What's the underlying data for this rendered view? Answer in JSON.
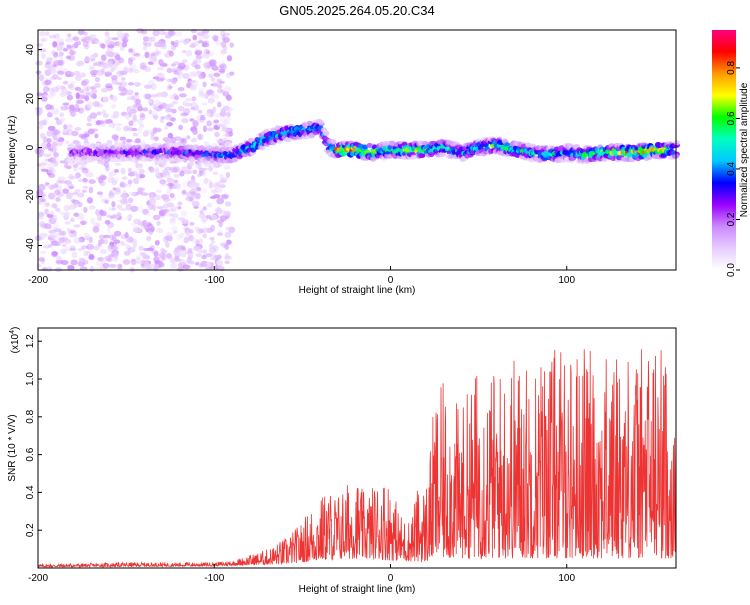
{
  "title": "GN05.2025.264.05.20.C34",
  "chart_data": [
    {
      "type": "heatmap",
      "title": "GN05.2025.264.05.20.C34",
      "xlabel": "Height of straight line (km)",
      "ylabel": "Frequency (Hz)",
      "xlim": [
        -200,
        162
      ],
      "ylim": [
        -50,
        48
      ],
      "x_ticks": [
        -200,
        -100,
        0,
        100
      ],
      "y_ticks": [
        -40,
        -20,
        0,
        20,
        40
      ],
      "grid": false,
      "colorbar": {
        "label": "Normalized spectral amplitude",
        "range": [
          0,
          0.95
        ],
        "ticks": [
          0.0,
          0.2,
          0.4,
          0.6,
          0.8
        ],
        "colormap": [
          "#ffffff",
          "#e6ccff",
          "#cc88ff",
          "#9900ff",
          "#0000ff",
          "#00c8ff",
          "#00ffc0",
          "#00ff00",
          "#ffff00",
          "#ff9900",
          "#ff0000",
          "#ff0080"
        ]
      },
      "ridge": {
        "x": [
          -180,
          -150,
          -120,
          -100,
          -90,
          -80,
          -70,
          -60,
          -50,
          -40,
          -35,
          -30,
          -20,
          -10,
          0,
          10,
          20,
          30,
          40,
          50,
          60,
          70,
          80,
          90,
          100,
          110,
          120,
          130,
          140,
          150,
          160
        ],
        "y": [
          -2,
          -2,
          -2,
          -3,
          -3,
          0,
          4,
          6,
          7,
          8,
          0,
          -1,
          -1,
          -2,
          -1,
          -1,
          -1,
          0,
          -2,
          0,
          1,
          -1,
          -2,
          -3,
          -2,
          -3,
          -2,
          -2,
          -2,
          -1,
          -1
        ],
        "peak_amplitude": [
          0.3,
          0.35,
          0.4,
          0.45,
          0.5,
          0.55,
          0.6,
          0.6,
          0.55,
          0.5,
          0.5,
          0.85,
          0.9,
          0.75,
          0.6,
          0.8,
          0.7,
          0.6,
          0.55,
          0.6,
          0.65,
          0.6,
          0.55,
          0.6,
          0.55,
          0.6,
          0.7,
          0.8,
          0.9,
          0.9,
          0.6
        ]
      },
      "noise_region": {
        "x_from": -200,
        "x_to": -90,
        "amplitude": 0.15
      }
    },
    {
      "type": "line",
      "xlabel": "Height of straight line (km)",
      "ylabel": "SNR (10 * V/V)",
      "y_scale_label": "(x10",
      "y_scale_exp": "4",
      "xlim": [
        -200,
        162
      ],
      "ylim": [
        0,
        1.27
      ],
      "x_ticks": [
        -200,
        -100,
        0,
        100
      ],
      "y_ticks": [
        0.2,
        0.4,
        0.6,
        0.8,
        1.0,
        1.2
      ],
      "grid": false,
      "color": "#ee3333",
      "envelope": {
        "x": [
          -200,
          -150,
          -100,
          -90,
          -80,
          -70,
          -60,
          -55,
          -50,
          -45,
          -40,
          -35,
          -30,
          -25,
          -20,
          -15,
          -10,
          -5,
          0,
          5,
          10,
          15,
          20,
          22,
          25,
          30,
          40,
          50,
          60,
          70,
          80,
          90,
          100,
          110,
          120,
          130,
          140,
          150,
          155,
          160,
          162
        ],
        "y": [
          0.02,
          0.03,
          0.03,
          0.04,
          0.07,
          0.1,
          0.16,
          0.2,
          0.25,
          0.33,
          0.38,
          0.42,
          0.4,
          0.45,
          0.5,
          0.4,
          0.44,
          0.5,
          0.47,
          0.3,
          0.25,
          0.42,
          0.45,
          0.6,
          0.9,
          0.98,
          0.85,
          1.1,
          1.05,
          1.15,
          1.1,
          1.2,
          1.15,
          1.2,
          1.1,
          1.2,
          1.15,
          1.25,
          1.2,
          0.9,
          0.6
        ]
      },
      "floor": {
        "x": [
          -200,
          -100,
          -60,
          -40,
          -20,
          0,
          20,
          25,
          40,
          60,
          80,
          100,
          120,
          140,
          160
        ],
        "y": [
          0.005,
          0.01,
          0.02,
          0.04,
          0.05,
          0.04,
          0.03,
          0.05,
          0.05,
          0.05,
          0.05,
          0.05,
          0.05,
          0.05,
          0.05
        ]
      }
    }
  ]
}
